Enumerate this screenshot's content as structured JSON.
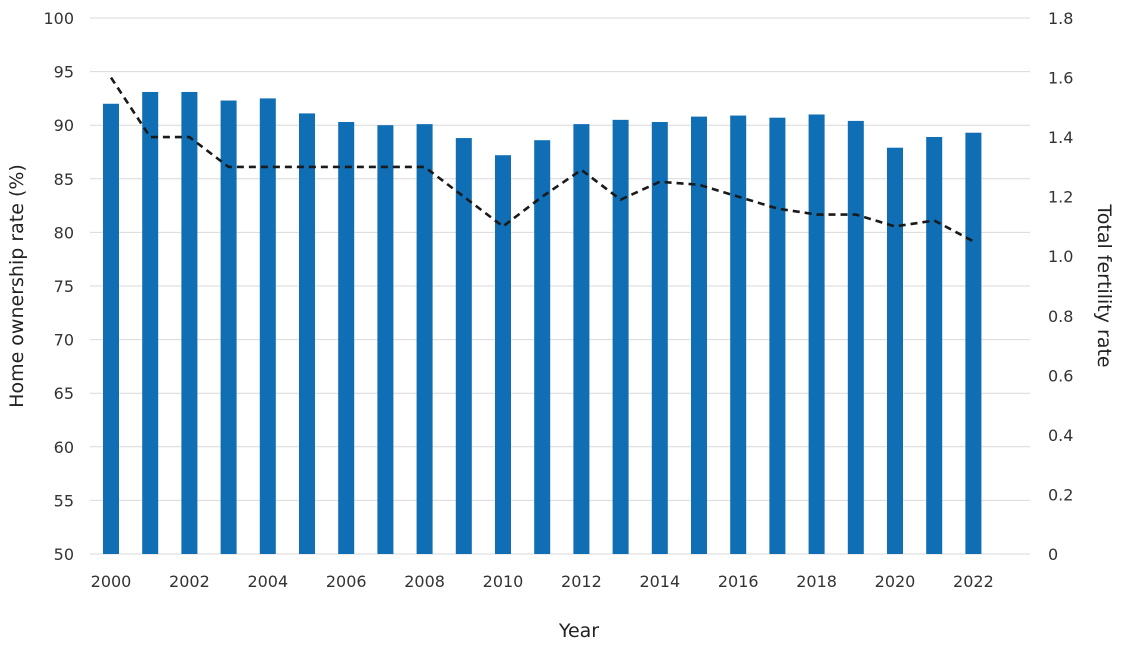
{
  "chart_data": {
    "type": "bar",
    "title": "",
    "xlabel": "Year",
    "ylabel_left": "Home ownership rate (%)",
    "ylabel_right": "Total fertility rate",
    "categories": [
      2000,
      2001,
      2002,
      2003,
      2004,
      2005,
      2006,
      2007,
      2008,
      2009,
      2010,
      2011,
      2012,
      2013,
      2014,
      2015,
      2016,
      2017,
      2018,
      2019,
      2020,
      2021,
      2022
    ],
    "x_tick_labels": [
      "2000",
      "2002",
      "2004",
      "2006",
      "2008",
      "2010",
      "2012",
      "2014",
      "2016",
      "2018",
      "2020",
      "2022"
    ],
    "ylim_left": [
      50,
      100
    ],
    "yticks_left": [
      "50",
      "55",
      "60",
      "65",
      "70",
      "75",
      "80",
      "85",
      "90",
      "95",
      "100"
    ],
    "ylim_right": [
      0,
      1.8
    ],
    "yticks_right": [
      "0",
      "0.2",
      "0.4",
      "0.6",
      "0.8",
      "1.0",
      "1.2",
      "1.4",
      "1.6",
      "1.8"
    ],
    "grid": true,
    "legend": "none",
    "series": [
      {
        "type": "bar",
        "axis": "left",
        "color": "#0f6eb4",
        "values": [
          92.0,
          93.1,
          93.1,
          92.3,
          92.5,
          91.1,
          90.3,
          90.0,
          90.1,
          88.8,
          87.2,
          88.6,
          90.1,
          90.5,
          90.3,
          90.8,
          90.9,
          90.7,
          91.0,
          90.4,
          87.9,
          88.9,
          89.3
        ]
      },
      {
        "type": "line",
        "axis": "right",
        "style": "dashed",
        "color": "#1a1a1a",
        "values": [
          1.6,
          1.4,
          1.4,
          1.3,
          1.3,
          1.3,
          1.3,
          1.3,
          1.3,
          1.2,
          1.1,
          1.2,
          1.29,
          1.19,
          1.25,
          1.24,
          1.2,
          1.16,
          1.14,
          1.14,
          1.1,
          1.12,
          1.05
        ]
      }
    ]
  }
}
